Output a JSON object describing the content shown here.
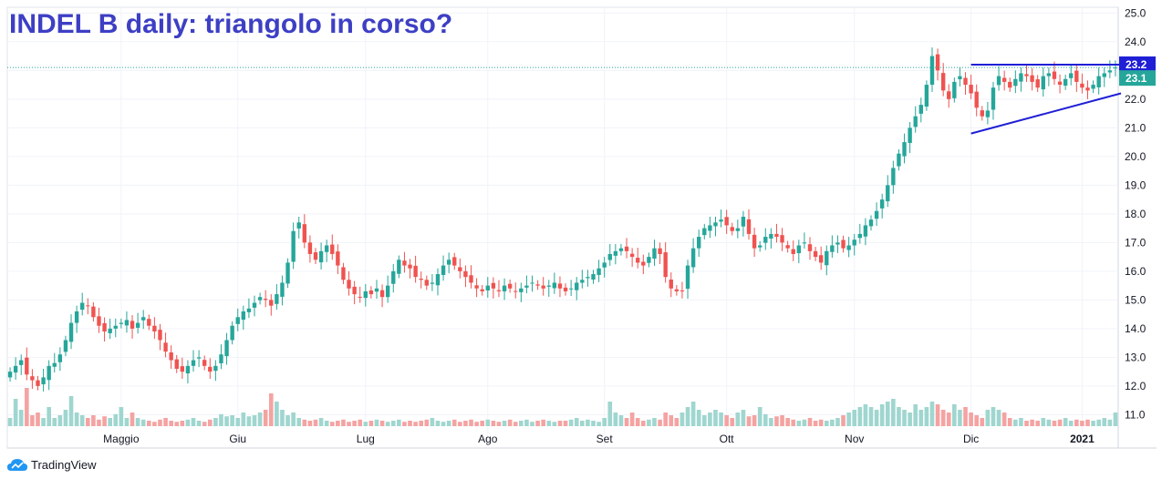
{
  "title": "INDEL B daily: triangolo in corso?",
  "brand": "TradingView",
  "colors": {
    "up": "#26a69a",
    "down": "#ef5350",
    "vol_up": "#9fd6cf",
    "vol_down": "#f4a3a2",
    "trend": "#1f1fd6",
    "title": "#3d3fc4"
  },
  "chart_data": {
    "type": "candlestick",
    "title": "INDEL B daily: triangolo in corso?",
    "ylim": [
      10.6,
      25.2
    ],
    "y_ticks": [
      "11.0",
      "12.0",
      "13.0",
      "14.0",
      "15.0",
      "16.0",
      "17.0",
      "18.0",
      "19.0",
      "20.0",
      "21.0",
      "22.0",
      "23.0",
      "24.0",
      "25.0"
    ],
    "x_labels": [
      {
        "label": "Maggio",
        "bar": 20,
        "bold": false
      },
      {
        "label": "Giu",
        "bar": 41,
        "bold": false
      },
      {
        "label": "Lug",
        "bar": 64,
        "bold": false
      },
      {
        "label": "Ago",
        "bar": 86,
        "bold": false
      },
      {
        "label": "Set",
        "bar": 107,
        "bold": false
      },
      {
        "label": "Ott",
        "bar": 129,
        "bold": false
      },
      {
        "label": "Nov",
        "bar": 152,
        "bold": false
      },
      {
        "label": "Dic",
        "bar": 173,
        "bold": false
      },
      {
        "label": "2021",
        "bar": 193,
        "bold": true
      }
    ],
    "last_price_label": "23.1",
    "level_label": "23.2",
    "resistance_level": 23.2,
    "support_trendline": {
      "from_bar": 173,
      "from_price": 20.8,
      "to_bar": 200,
      "to_price": 22.2
    },
    "resistance_line": {
      "from_bar": 173,
      "to_bar": 200,
      "price": 23.2
    },
    "last_close": 23.1,
    "closes": [
      12.5,
      12.7,
      12.9,
      12.4,
      12.2,
      12.0,
      12.3,
      12.7,
      12.8,
      13.1,
      13.6,
      14.2,
      14.6,
      14.9,
      14.8,
      14.4,
      14.1,
      13.9,
      14.0,
      14.1,
      14.2,
      14.3,
      14.0,
      14.2,
      14.4,
      14.1,
      13.9,
      13.6,
      13.2,
      12.9,
      12.6,
      12.5,
      12.7,
      12.9,
      13.0,
      12.7,
      12.5,
      12.7,
      13.1,
      13.6,
      14.1,
      14.4,
      14.6,
      14.7,
      14.9,
      15.1,
      15.0,
      14.8,
      15.2,
      15.6,
      16.3,
      17.4,
      17.7,
      17.0,
      16.6,
      16.4,
      16.7,
      16.9,
      16.6,
      16.2,
      15.7,
      15.4,
      15.2,
      15.1,
      15.3,
      15.2,
      15.4,
      15.1,
      15.5,
      16.0,
      16.4,
      16.2,
      16.1,
      15.8,
      15.7,
      15.5,
      15.6,
      15.9,
      16.2,
      16.4,
      16.2,
      16.0,
      15.8,
      15.6,
      15.4,
      15.3,
      15.5,
      15.4,
      15.3,
      15.5,
      15.4,
      15.3,
      15.4,
      15.5,
      15.6,
      15.5,
      15.4,
      15.5,
      15.6,
      15.4,
      15.3,
      15.4,
      15.6,
      15.7,
      15.8,
      15.9,
      16.1,
      16.3,
      16.6,
      16.7,
      16.8,
      16.7,
      16.5,
      16.3,
      16.2,
      16.5,
      16.8,
      16.6,
      15.8,
      15.4,
      15.3,
      15.3,
      16.2,
      16.8,
      17.2,
      17.5,
      17.6,
      17.7,
      17.8,
      17.6,
      17.4,
      17.5,
      17.9,
      17.3,
      16.8,
      16.9,
      17.2,
      17.3,
      17.2,
      17.0,
      16.8,
      16.6,
      16.9,
      17.0,
      16.7,
      16.5,
      16.3,
      16.7,
      16.9,
      17.0,
      16.8,
      16.9,
      17.1,
      17.3,
      17.6,
      17.8,
      18.1,
      18.5,
      19.0,
      19.6,
      20.1,
      20.5,
      21.0,
      21.4,
      21.8,
      22.5,
      23.5,
      23.0,
      22.3,
      22.0,
      22.6,
      22.8,
      22.5,
      22.2,
      21.7,
      21.4,
      21.6,
      22.4,
      22.8,
      22.6,
      22.4,
      22.7,
      22.9,
      22.8,
      22.6,
      22.4,
      22.8,
      22.9,
      22.7,
      22.5,
      22.7,
      22.9,
      22.6,
      22.4,
      22.3,
      22.5,
      22.8,
      22.9,
      23.0,
      23.1
    ],
    "volume_max": 100,
    "volumes": [
      15,
      50,
      30,
      70,
      20,
      25,
      15,
      35,
      15,
      20,
      30,
      55,
      25,
      20,
      15,
      20,
      12,
      18,
      15,
      22,
      35,
      15,
      25,
      15,
      12,
      10,
      8,
      12,
      15,
      10,
      8,
      10,
      12,
      15,
      10,
      8,
      12,
      15,
      22,
      18,
      20,
      15,
      25,
      18,
      20,
      25,
      30,
      60,
      45,
      30,
      20,
      25,
      15,
      12,
      10,
      12,
      15,
      10,
      8,
      10,
      12,
      8,
      10,
      12,
      8,
      10,
      12,
      10,
      8,
      10,
      12,
      8,
      10,
      8,
      10,
      12,
      15,
      10,
      8,
      10,
      12,
      8,
      10,
      12,
      8,
      10,
      12,
      10,
      8,
      10,
      12,
      8,
      10,
      12,
      8,
      10,
      12,
      10,
      8,
      10,
      10,
      12,
      15,
      10,
      12,
      10,
      8,
      15,
      45,
      25,
      20,
      15,
      25,
      15,
      10,
      12,
      15,
      12,
      25,
      20,
      15,
      25,
      35,
      45,
      30,
      20,
      25,
      30,
      25,
      20,
      15,
      25,
      30,
      18,
      20,
      35,
      22,
      15,
      18,
      20,
      15,
      12,
      10,
      12,
      15,
      10,
      12,
      10,
      12,
      15,
      20,
      25,
      30,
      35,
      40,
      35,
      30,
      40,
      45,
      50,
      35,
      30,
      25,
      40,
      30,
      35,
      45,
      40,
      30,
      25,
      40,
      30,
      35,
      25,
      20,
      15,
      30,
      35,
      30,
      25,
      15,
      12,
      15,
      10,
      12,
      10,
      15,
      12,
      10,
      12,
      15,
      10,
      12,
      10,
      12,
      10,
      12,
      15,
      12,
      25
    ]
  }
}
